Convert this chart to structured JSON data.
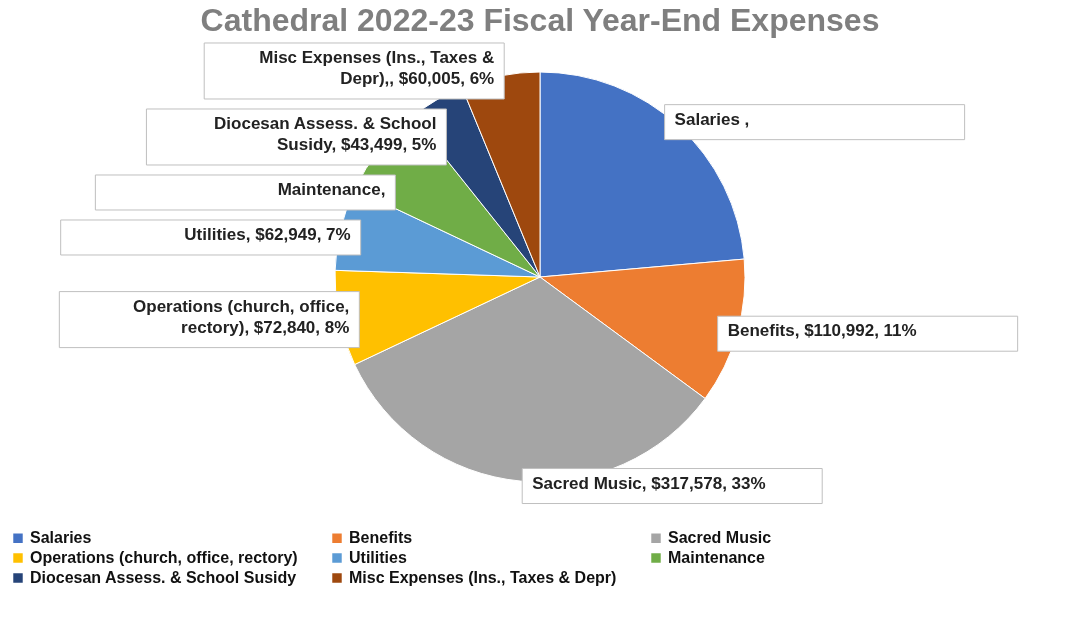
{
  "chart_data": {
    "type": "pie",
    "title": "Cathedral 2022-23 Fiscal Year-End Expenses",
    "categories": [
      "Salaries",
      "Benefits",
      "Sacred Music",
      "Operations (church, office, rectory)",
      "Utilities",
      "Maintenance",
      "Diocesan Assess. & School Susidy",
      "Misc Expenses (Ins., Taxes & Depr)"
    ],
    "values": [
      228000,
      110992,
      317578,
      72840,
      62949,
      70000,
      43499,
      60005
    ],
    "colors": [
      "#4472c4",
      "#ed7d31",
      "#a5a5a5",
      "#ffc000",
      "#5b9bd5",
      "#70ad47",
      "#264478",
      "#9e480e"
    ],
    "value_labels": [
      "Salaries ,",
      "Benefits, $110,992, 11%",
      "Sacred Music,  $317,578, 33%",
      "Operations (church, office, rectory), $72,840, 8%",
      "Utilities, $62,949, 7%",
      "Maintenance,",
      "Diocesan Assess. & School Susidy,  $43,499, 5%",
      "Misc Expenses (Ins., Taxes & Depr),, $60,005, 6%"
    ],
    "legend": "bottom"
  }
}
